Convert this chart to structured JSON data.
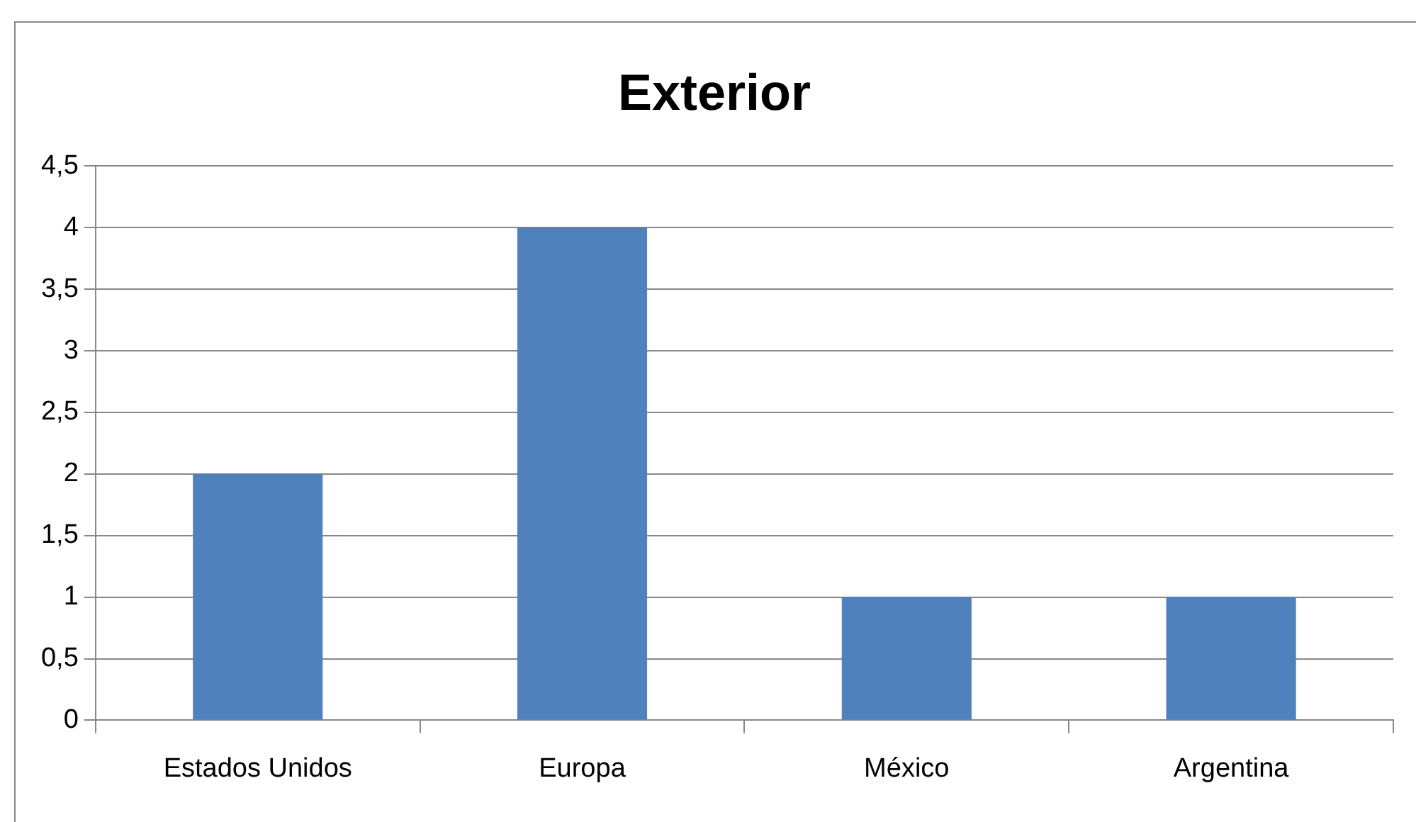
{
  "chart_data": {
    "type": "bar",
    "title": "Exterior",
    "categories": [
      "Estados Unidos",
      "Europa",
      "México",
      "Argentina"
    ],
    "values": [
      2,
      4,
      1,
      1
    ],
    "color": "#4f81bd",
    "ylim": [
      0,
      4.5
    ],
    "yticks": [
      0,
      {
        "value": 0.5,
        "label": "0,5"
      },
      1,
      {
        "value": 1.5,
        "label": "1,5"
      },
      2,
      {
        "value": 2.5,
        "label": "2,5"
      },
      3,
      {
        "value": 3.5,
        "label": "3,5"
      },
      4,
      {
        "value": 4.5,
        "label": "4,5"
      }
    ],
    "grid": "y",
    "legend": false
  }
}
